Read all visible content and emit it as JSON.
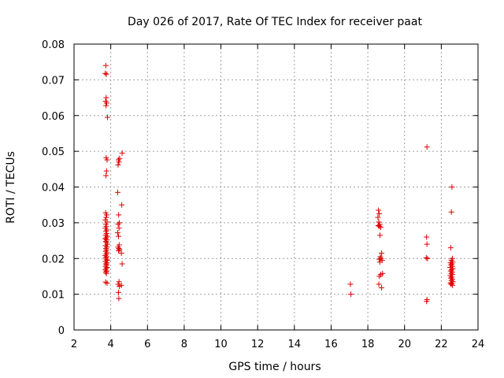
{
  "chart_data": {
    "type": "scatter",
    "title": "Day 026 of 2017, Rate Of TEC Index for receiver paat",
    "xlabel": "GPS time / hours",
    "ylabel": "ROTI / TECUs",
    "xlim": [
      2,
      24
    ],
    "ylim": [
      0,
      0.08
    ],
    "xticks": [
      2,
      4,
      6,
      8,
      10,
      12,
      14,
      16,
      18,
      20,
      22,
      24
    ],
    "yticks": [
      0,
      0.01,
      0.02,
      0.03,
      0.04,
      0.05,
      0.06,
      0.07,
      0.08
    ],
    "ytick_labels": [
      "0",
      "0.01",
      "0.02",
      "0.03",
      "0.04",
      "0.05",
      "0.06",
      "0.07",
      "0.08"
    ],
    "grid": true,
    "marker": "+",
    "color": "#dd0000",
    "series": [
      {
        "points": [
          [
            3.73,
            0.074
          ],
          [
            3.7,
            0.0718
          ],
          [
            3.77,
            0.0716
          ],
          [
            3.75,
            0.065
          ],
          [
            3.72,
            0.064
          ],
          [
            3.78,
            0.0635
          ],
          [
            3.74,
            0.0628
          ],
          [
            3.82,
            0.0595
          ],
          [
            3.75,
            0.0482
          ],
          [
            3.8,
            0.0476
          ],
          [
            3.77,
            0.0445
          ],
          [
            3.74,
            0.0432
          ],
          [
            3.72,
            0.0328
          ],
          [
            3.78,
            0.0322
          ],
          [
            3.75,
            0.0315
          ],
          [
            3.7,
            0.0308
          ],
          [
            3.8,
            0.0302
          ],
          [
            3.73,
            0.0296
          ],
          [
            3.76,
            0.029
          ],
          [
            3.71,
            0.0285
          ],
          [
            3.79,
            0.028
          ],
          [
            3.74,
            0.0276
          ],
          [
            3.77,
            0.027
          ],
          [
            3.72,
            0.0265
          ],
          [
            3.81,
            0.0262
          ],
          [
            3.75,
            0.0258
          ],
          [
            3.7,
            0.0255
          ],
          [
            3.78,
            0.0252
          ],
          [
            3.73,
            0.0248
          ],
          [
            3.76,
            0.0245
          ],
          [
            3.82,
            0.024
          ],
          [
            3.71,
            0.0236
          ],
          [
            3.79,
            0.0232
          ],
          [
            3.74,
            0.0228
          ],
          [
            3.77,
            0.0224
          ],
          [
            3.72,
            0.022
          ],
          [
            3.8,
            0.0216
          ],
          [
            3.75,
            0.0212
          ],
          [
            3.7,
            0.0208
          ],
          [
            3.78,
            0.0205
          ],
          [
            3.73,
            0.0202
          ],
          [
            3.76,
            0.0198
          ],
          [
            3.81,
            0.0195
          ],
          [
            3.71,
            0.0192
          ],
          [
            3.79,
            0.0188
          ],
          [
            3.74,
            0.0185
          ],
          [
            3.77,
            0.0182
          ],
          [
            3.72,
            0.0178
          ],
          [
            3.8,
            0.0175
          ],
          [
            3.75,
            0.0172
          ],
          [
            3.7,
            0.0168
          ],
          [
            3.78,
            0.0165
          ],
          [
            3.73,
            0.0162
          ],
          [
            3.76,
            0.0158
          ],
          [
            3.72,
            0.0134
          ],
          [
            3.8,
            0.0131
          ],
          [
            4.48,
            0.048
          ],
          [
            4.42,
            0.0476
          ],
          [
            4.45,
            0.047
          ],
          [
            4.4,
            0.0462
          ],
          [
            4.38,
            0.0385
          ],
          [
            4.43,
            0.0322
          ],
          [
            4.47,
            0.03
          ],
          [
            4.4,
            0.0296
          ],
          [
            4.45,
            0.0285
          ],
          [
            4.38,
            0.0272
          ],
          [
            4.42,
            0.0262
          ],
          [
            4.46,
            0.0238
          ],
          [
            4.4,
            0.0232
          ],
          [
            4.44,
            0.0228
          ],
          [
            4.48,
            0.0225
          ],
          [
            4.42,
            0.0222
          ],
          [
            4.45,
            0.0135
          ],
          [
            4.4,
            0.0128
          ],
          [
            4.47,
            0.0122
          ],
          [
            4.42,
            0.0105
          ],
          [
            4.44,
            0.0088
          ],
          [
            4.62,
            0.0495
          ],
          [
            4.6,
            0.035
          ],
          [
            4.58,
            0.0215
          ],
          [
            4.62,
            0.0185
          ],
          [
            4.58,
            0.0125
          ],
          [
            17.05,
            0.0128
          ],
          [
            17.08,
            0.01
          ],
          [
            18.58,
            0.0335
          ],
          [
            18.62,
            0.0325
          ],
          [
            18.55,
            0.0315
          ],
          [
            18.6,
            0.0302
          ],
          [
            18.65,
            0.0295
          ],
          [
            18.57,
            0.0292
          ],
          [
            18.63,
            0.029
          ],
          [
            18.7,
            0.0287
          ],
          [
            18.66,
            0.0265
          ],
          [
            18.75,
            0.0215
          ],
          [
            18.68,
            0.0205
          ],
          [
            18.72,
            0.02
          ],
          [
            18.62,
            0.0198
          ],
          [
            18.78,
            0.0195
          ],
          [
            18.65,
            0.019
          ],
          [
            18.8,
            0.0158
          ],
          [
            18.7,
            0.0155
          ],
          [
            18.63,
            0.015
          ],
          [
            18.6,
            0.0128
          ],
          [
            18.75,
            0.0118
          ],
          [
            21.22,
            0.0512
          ],
          [
            21.2,
            0.026
          ],
          [
            21.22,
            0.024
          ],
          [
            21.18,
            0.0202
          ],
          [
            21.25,
            0.02
          ],
          [
            21.22,
            0.0085
          ],
          [
            21.2,
            0.008
          ],
          [
            22.58,
            0.04
          ],
          [
            22.55,
            0.033
          ],
          [
            22.52,
            0.023
          ],
          [
            22.6,
            0.02
          ],
          [
            22.55,
            0.0195
          ],
          [
            22.62,
            0.019
          ],
          [
            22.5,
            0.0188
          ],
          [
            22.58,
            0.0185
          ],
          [
            22.53,
            0.0182
          ],
          [
            22.6,
            0.0178
          ],
          [
            22.48,
            0.0175
          ],
          [
            22.63,
            0.0172
          ],
          [
            22.56,
            0.0168
          ],
          [
            22.51,
            0.0165
          ],
          [
            22.59,
            0.0162
          ],
          [
            22.54,
            0.0158
          ],
          [
            22.61,
            0.0155
          ],
          [
            22.49,
            0.0152
          ],
          [
            22.57,
            0.0148
          ],
          [
            22.52,
            0.0145
          ],
          [
            22.6,
            0.0142
          ],
          [
            22.55,
            0.0138
          ],
          [
            22.63,
            0.0135
          ],
          [
            22.5,
            0.0132
          ],
          [
            22.58,
            0.013
          ],
          [
            22.53,
            0.0128
          ],
          [
            22.61,
            0.0125
          ]
        ]
      }
    ]
  }
}
